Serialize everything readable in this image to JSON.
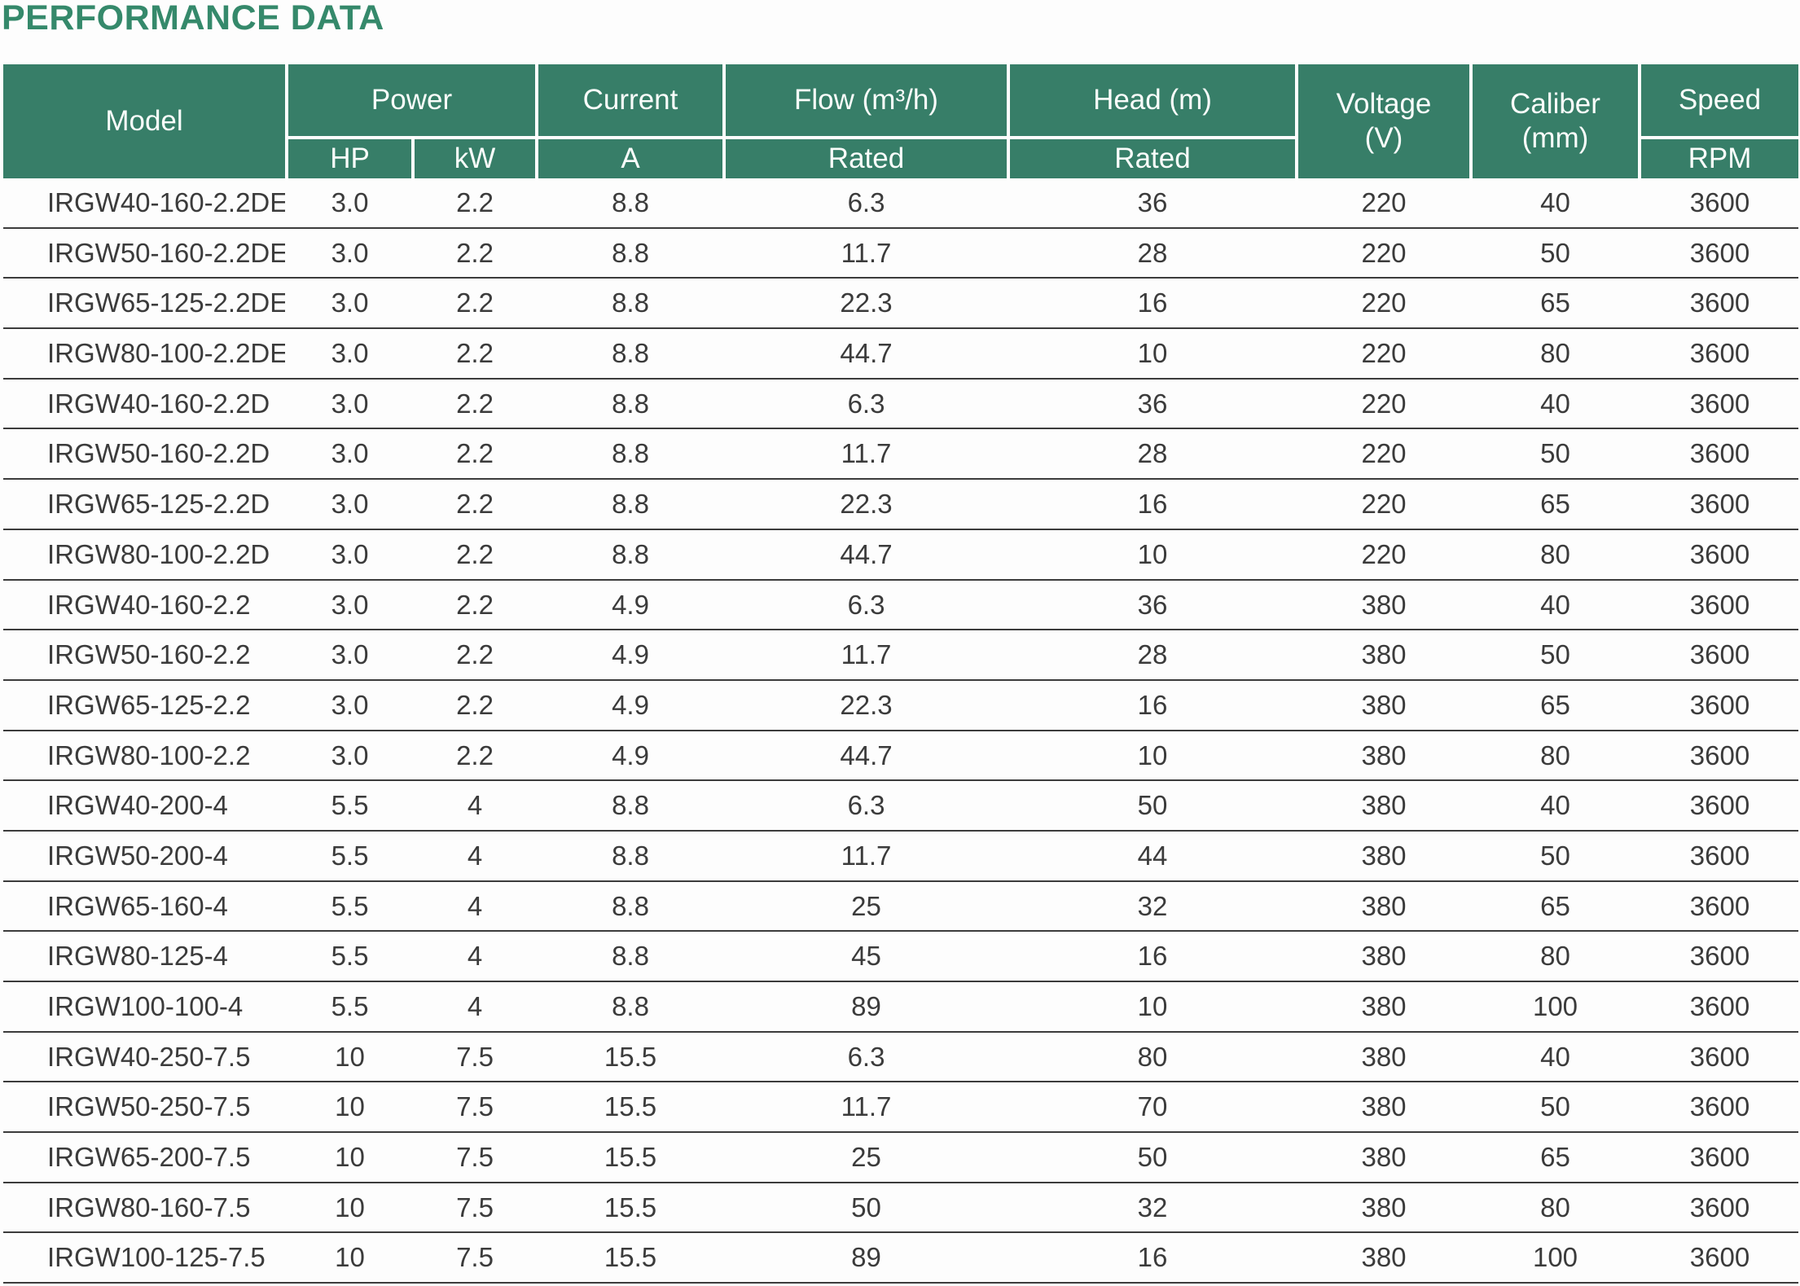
{
  "page": {
    "title": "PERFORMANCE DATA"
  },
  "colors": {
    "title_green": "#35896b",
    "header_green": "#377e68",
    "header_text": "#fafdfb",
    "body_text": "#3b3b3b",
    "row_line": "#3c3c3c",
    "background": "#fdfdfd"
  },
  "table": {
    "header": {
      "model": "Model",
      "power": "Power",
      "hp": "HP",
      "kw": "kW",
      "current": "Current",
      "current_a": "A",
      "flow": "Flow (m³/h)",
      "flow_rated": "Rated",
      "head": "Head (m)",
      "head_rated": "Rated",
      "voltage_line1": "Voltage",
      "voltage_line2": "(V)",
      "caliber_line1": "Caliber",
      "caliber_line2": "(mm)",
      "speed": "Speed",
      "speed_rpm": "RPM"
    },
    "columns": [
      "model",
      "power_hp",
      "power_kw",
      "current_a",
      "flow_rated",
      "head_rated",
      "voltage_v",
      "caliber_mm",
      "speed_rpm"
    ],
    "rows": [
      [
        "IRGW40-160-2.2DE",
        "3.0",
        "2.2",
        "8.8",
        "6.3",
        "36",
        "220",
        "40",
        "3600"
      ],
      [
        "IRGW50-160-2.2DE",
        "3.0",
        "2.2",
        "8.8",
        "11.7",
        "28",
        "220",
        "50",
        "3600"
      ],
      [
        "IRGW65-125-2.2DE",
        "3.0",
        "2.2",
        "8.8",
        "22.3",
        "16",
        "220",
        "65",
        "3600"
      ],
      [
        "IRGW80-100-2.2DE",
        "3.0",
        "2.2",
        "8.8",
        "44.7",
        "10",
        "220",
        "80",
        "3600"
      ],
      [
        "IRGW40-160-2.2D",
        "3.0",
        "2.2",
        "8.8",
        "6.3",
        "36",
        "220",
        "40",
        "3600"
      ],
      [
        "IRGW50-160-2.2D",
        "3.0",
        "2.2",
        "8.8",
        "11.7",
        "28",
        "220",
        "50",
        "3600"
      ],
      [
        "IRGW65-125-2.2D",
        "3.0",
        "2.2",
        "8.8",
        "22.3",
        "16",
        "220",
        "65",
        "3600"
      ],
      [
        "IRGW80-100-2.2D",
        "3.0",
        "2.2",
        "8.8",
        "44.7",
        "10",
        "220",
        "80",
        "3600"
      ],
      [
        "IRGW40-160-2.2",
        "3.0",
        "2.2",
        "4.9",
        "6.3",
        "36",
        "380",
        "40",
        "3600"
      ],
      [
        "IRGW50-160-2.2",
        "3.0",
        "2.2",
        "4.9",
        "11.7",
        "28",
        "380",
        "50",
        "3600"
      ],
      [
        "IRGW65-125-2.2",
        "3.0",
        "2.2",
        "4.9",
        "22.3",
        "16",
        "380",
        "65",
        "3600"
      ],
      [
        "IRGW80-100-2.2",
        "3.0",
        "2.2",
        "4.9",
        "44.7",
        "10",
        "380",
        "80",
        "3600"
      ],
      [
        "IRGW40-200-4",
        "5.5",
        "4",
        "8.8",
        "6.3",
        "50",
        "380",
        "40",
        "3600"
      ],
      [
        "IRGW50-200-4",
        "5.5",
        "4",
        "8.8",
        "11.7",
        "44",
        "380",
        "50",
        "3600"
      ],
      [
        "IRGW65-160-4",
        "5.5",
        "4",
        "8.8",
        "25",
        "32",
        "380",
        "65",
        "3600"
      ],
      [
        "IRGW80-125-4",
        "5.5",
        "4",
        "8.8",
        "45",
        "16",
        "380",
        "80",
        "3600"
      ],
      [
        "IRGW100-100-4",
        "5.5",
        "4",
        "8.8",
        "89",
        "10",
        "380",
        "100",
        "3600"
      ],
      [
        "IRGW40-250-7.5",
        "10",
        "7.5",
        "15.5",
        "6.3",
        "80",
        "380",
        "40",
        "3600"
      ],
      [
        "IRGW50-250-7.5",
        "10",
        "7.5",
        "15.5",
        "11.7",
        "70",
        "380",
        "50",
        "3600"
      ],
      [
        "IRGW65-200-7.5",
        "10",
        "7.5",
        "15.5",
        "25",
        "50",
        "380",
        "65",
        "3600"
      ],
      [
        "IRGW80-160-7.5",
        "10",
        "7.5",
        "15.5",
        "50",
        "32",
        "380",
        "80",
        "3600"
      ],
      [
        "IRGW100-125-7.5",
        "10",
        "7.5",
        "15.5",
        "89",
        "16",
        "380",
        "100",
        "3600"
      ]
    ]
  }
}
